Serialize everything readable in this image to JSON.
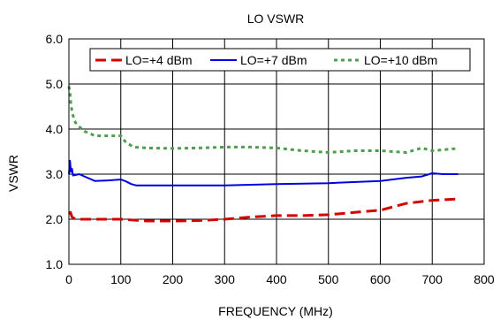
{
  "chart_data": {
    "type": "line",
    "title": "LO VSWR",
    "xlabel": "FREQUENCY (MHz)",
    "ylabel": "VSWR",
    "xlim": [
      0,
      800
    ],
    "ylim": [
      1.0,
      6.0
    ],
    "x_ticks": [
      "0",
      "100",
      "200",
      "300",
      "400",
      "500",
      "600",
      "700",
      "800"
    ],
    "y_ticks": [
      "1.0",
      "2.0",
      "3.0",
      "4.0",
      "5.0",
      "6.0"
    ],
    "grid": true,
    "legend_position": "top",
    "series": [
      {
        "name": "LO=+4 dBm",
        "color": "#d40000",
        "dash": "dashed",
        "x": [
          0,
          3,
          6,
          10,
          15,
          25,
          50,
          100,
          150,
          200,
          250,
          300,
          350,
          400,
          450,
          500,
          550,
          600,
          650,
          700,
          750
        ],
        "y": [
          2.12,
          2.15,
          2.05,
          2.02,
          2.0,
          2.0,
          2.0,
          2.0,
          1.96,
          1.96,
          1.97,
          2.0,
          2.05,
          2.08,
          2.08,
          2.1,
          2.15,
          2.2,
          2.35,
          2.42,
          2.45
        ]
      },
      {
        "name": "LO=+7 dBm",
        "color": "#0000e0",
        "dash": "solid",
        "x": [
          0,
          2,
          4,
          6,
          8,
          12,
          20,
          30,
          50,
          75,
          100,
          110,
          120,
          130,
          150,
          200,
          300,
          400,
          500,
          600,
          650,
          680,
          700,
          720,
          750
        ],
        "y": [
          3.0,
          3.3,
          3.05,
          3.12,
          2.97,
          2.98,
          3.0,
          2.95,
          2.85,
          2.86,
          2.88,
          2.84,
          2.78,
          2.75,
          2.75,
          2.75,
          2.75,
          2.78,
          2.8,
          2.85,
          2.92,
          2.95,
          3.02,
          3.0,
          3.0
        ]
      },
      {
        "name": "LO=+10 dBm",
        "color": "#4f9e4f",
        "dash": "dotted",
        "x": [
          0,
          2,
          4,
          6,
          8,
          10,
          15,
          20,
          30,
          50,
          75,
          100,
          110,
          125,
          150,
          200,
          250,
          300,
          350,
          400,
          450,
          500,
          550,
          600,
          650,
          680,
          700,
          750
        ],
        "y": [
          4.95,
          4.8,
          4.55,
          4.4,
          4.3,
          4.2,
          4.1,
          4.05,
          3.95,
          3.85,
          3.85,
          3.85,
          3.7,
          3.6,
          3.58,
          3.57,
          3.58,
          3.6,
          3.6,
          3.58,
          3.52,
          3.48,
          3.52,
          3.52,
          3.48,
          3.58,
          3.52,
          3.57
        ]
      }
    ]
  }
}
